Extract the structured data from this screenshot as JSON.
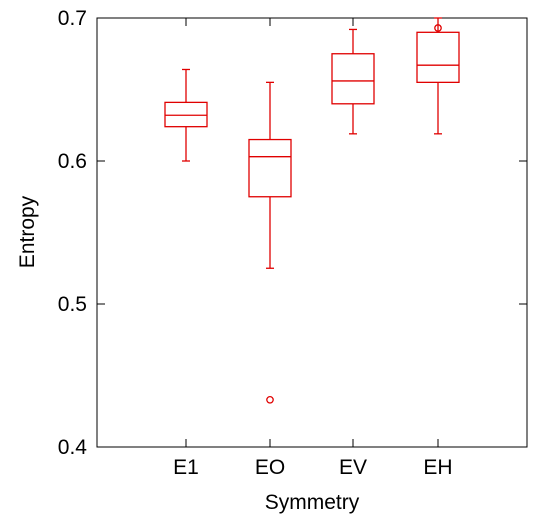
{
  "chart_data": {
    "type": "box",
    "xlabel": "Symmetry",
    "ylabel": "Entropy",
    "ylim": [
      0.4,
      0.7
    ],
    "yticks": [
      0.4,
      0.5,
      0.6,
      0.7
    ],
    "ytick_labels": [
      "0.4",
      "0.5",
      "0.6",
      "0.7"
    ],
    "categories": [
      "E1",
      "EO",
      "EV",
      "EH"
    ],
    "grid": false,
    "legend": "none",
    "box_color": "#e00000",
    "boxes": [
      {
        "name": "E1",
        "whisker_low": 0.6,
        "q1": 0.624,
        "median": 0.632,
        "q3": 0.641,
        "whisker_high": 0.664,
        "outliers": []
      },
      {
        "name": "EO",
        "whisker_low": 0.525,
        "q1": 0.575,
        "median": 0.603,
        "q3": 0.615,
        "whisker_high": 0.655,
        "outliers": [
          0.433
        ]
      },
      {
        "name": "EV",
        "whisker_low": 0.619,
        "q1": 0.64,
        "median": 0.656,
        "q3": 0.675,
        "whisker_high": 0.692,
        "outliers": []
      },
      {
        "name": "EH",
        "whisker_low": 0.619,
        "q1": 0.655,
        "median": 0.667,
        "q3": 0.69,
        "whisker_high": 0.7,
        "outliers": [
          0.693
        ]
      }
    ]
  }
}
